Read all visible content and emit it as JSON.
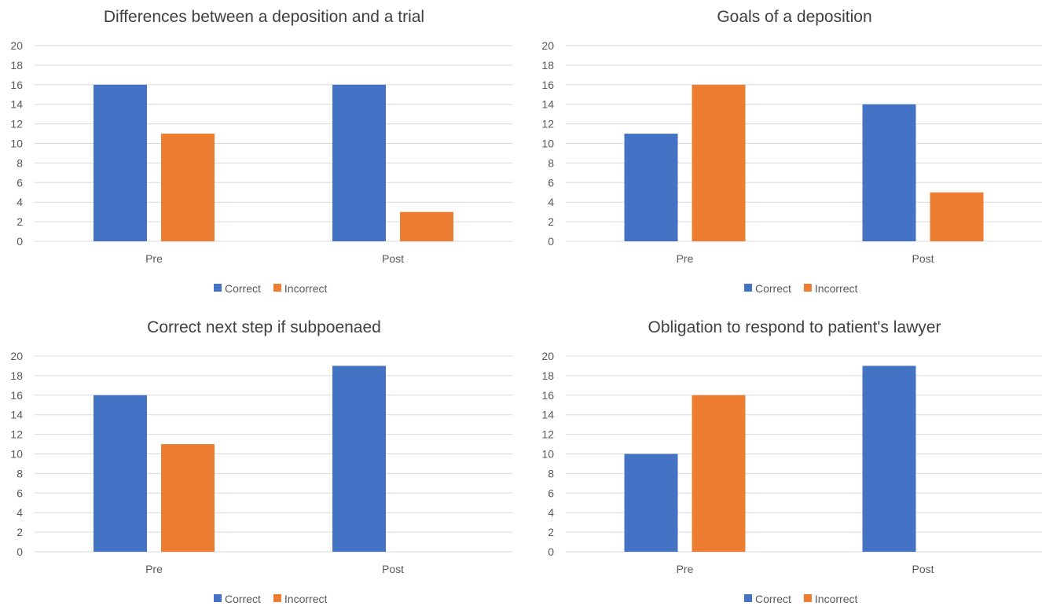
{
  "colors": {
    "Correct": "#4472c4",
    "Incorrect": "#ed7d31"
  },
  "chart_data": [
    {
      "type": "bar",
      "title": "Differences between a deposition and a trial",
      "categories": [
        "Pre",
        "Post"
      ],
      "series": [
        {
          "name": "Correct",
          "values": [
            16,
            16
          ]
        },
        {
          "name": "Incorrect",
          "values": [
            11,
            3
          ]
        }
      ],
      "ylim": [
        0,
        20
      ],
      "yticks": [
        0,
        2,
        4,
        6,
        8,
        10,
        12,
        14,
        16,
        18,
        20
      ],
      "grid": true,
      "legend": "bottom"
    },
    {
      "type": "bar",
      "title": "Goals of a deposition",
      "categories": [
        "Pre",
        "Post"
      ],
      "series": [
        {
          "name": "Correct",
          "values": [
            11,
            14
          ]
        },
        {
          "name": "Incorrect",
          "values": [
            16,
            5
          ]
        }
      ],
      "ylim": [
        0,
        20
      ],
      "yticks": [
        0,
        2,
        4,
        6,
        8,
        10,
        12,
        14,
        16,
        18,
        20
      ],
      "grid": true,
      "legend": "bottom"
    },
    {
      "type": "bar",
      "title": "Correct next step if subpoenaed",
      "categories": [
        "Pre",
        "Post"
      ],
      "series": [
        {
          "name": "Correct",
          "values": [
            16,
            19
          ]
        },
        {
          "name": "Incorrect",
          "values": [
            11,
            0
          ]
        }
      ],
      "ylim": [
        0,
        20
      ],
      "yticks": [
        0,
        2,
        4,
        6,
        8,
        10,
        12,
        14,
        16,
        18,
        20
      ],
      "grid": true,
      "legend": "bottom"
    },
    {
      "type": "bar",
      "title": "Obligation to respond to patient's lawyer",
      "categories": [
        "Pre",
        "Post"
      ],
      "series": [
        {
          "name": "Correct",
          "values": [
            10,
            19
          ]
        },
        {
          "name": "Incorrect",
          "values": [
            16,
            0
          ]
        }
      ],
      "ylim": [
        0,
        20
      ],
      "yticks": [
        0,
        2,
        4,
        6,
        8,
        10,
        12,
        14,
        16,
        18,
        20
      ],
      "grid": true,
      "legend": "bottom"
    }
  ]
}
